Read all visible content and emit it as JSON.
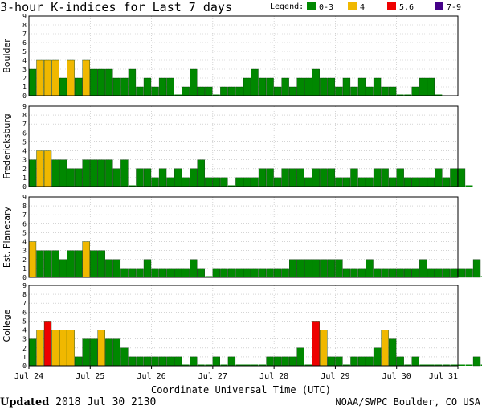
{
  "title": "3-hour K-indices for Last 7 days",
  "legend": {
    "title": "Legend:",
    "items": [
      {
        "label": "0-3",
        "color": "#008800"
      },
      {
        "label": "4",
        "color": "#f0b800"
      },
      {
        "label": "5,6",
        "color": "#ee0000"
      },
      {
        "label": "7-9",
        "color": "#440088"
      }
    ]
  },
  "footer": {
    "updated_label": "Updated",
    "updated_value": "2018 Jul 30 2130",
    "credit": "NOAA/SWPC Boulder, CO USA"
  },
  "chart_data": {
    "type": "bar",
    "title": "3-hour K-indices for Last 7 days",
    "xlabel": "Coordinate Universal Time (UTC)",
    "ylim": [
      0,
      9
    ],
    "yticks": [
      0,
      1,
      2,
      3,
      4,
      5,
      6,
      7,
      8,
      9
    ],
    "grid": true,
    "legend_placement": "top-right",
    "x_ticks": [
      "Jul 24",
      "Jul 25",
      "Jul 26",
      "Jul 27",
      "Jul 28",
      "Jul 29",
      "Jul 30",
      "Jul 31"
    ],
    "interval_hours": 3,
    "thresholds": {
      "green_max": 3,
      "yellow": 4,
      "red_max": 6
    },
    "colors": {
      "green": "#008800",
      "yellow": "#f0b800",
      "red": "#ee0000",
      "purple": "#440088"
    },
    "series": [
      {
        "name": "Boulder",
        "values": [
          3,
          4,
          4,
          4,
          2,
          4,
          2,
          4,
          3,
          3,
          3,
          2,
          2,
          3,
          1,
          2,
          1,
          2,
          2,
          0,
          1,
          3,
          1,
          1,
          0,
          1,
          1,
          1,
          2,
          3,
          2,
          2,
          1,
          2,
          1,
          2,
          2,
          3,
          2,
          2,
          1,
          2,
          1,
          2,
          1,
          2,
          1,
          1,
          0,
          0,
          1,
          2,
          2,
          0
        ]
      },
      {
        "name": "Fredericksburg",
        "values": [
          3,
          4,
          4,
          3,
          3,
          2,
          2,
          3,
          3,
          3,
          3,
          2,
          3,
          0,
          2,
          2,
          1,
          2,
          1,
          2,
          1,
          2,
          3,
          1,
          1,
          1,
          0,
          1,
          1,
          1,
          2,
          2,
          1,
          2,
          2,
          2,
          1,
          2,
          2,
          2,
          1,
          1,
          2,
          1,
          1,
          2,
          2,
          1,
          2,
          1,
          1,
          1,
          1,
          2,
          1,
          2,
          2,
          0
        ]
      },
      {
        "name": "Est. Planetary",
        "values": [
          4,
          3,
          3,
          3,
          2,
          3,
          3,
          4,
          3,
          3,
          2,
          2,
          1,
          1,
          1,
          2,
          1,
          1,
          1,
          1,
          1,
          2,
          1,
          0,
          1,
          1,
          1,
          1,
          1,
          1,
          1,
          1,
          1,
          1,
          2,
          2,
          2,
          2,
          2,
          2,
          2,
          1,
          1,
          1,
          2,
          1,
          1,
          1,
          1,
          1,
          1,
          2,
          1,
          1,
          1,
          1,
          1,
          1,
          2,
          0
        ]
      },
      {
        "name": "College",
        "values": [
          3,
          4,
          5,
          4,
          4,
          4,
          1,
          3,
          3,
          4,
          3,
          3,
          2,
          1,
          1,
          1,
          1,
          1,
          1,
          1,
          0,
          1,
          0,
          0,
          1,
          0,
          1,
          0,
          0,
          0,
          0,
          1,
          1,
          1,
          1,
          2,
          0,
          5,
          4,
          1,
          1,
          0,
          1,
          1,
          1,
          2,
          4,
          3,
          1,
          0,
          1,
          0,
          0,
          0,
          0,
          0,
          0,
          0,
          1,
          0
        ]
      }
    ]
  }
}
